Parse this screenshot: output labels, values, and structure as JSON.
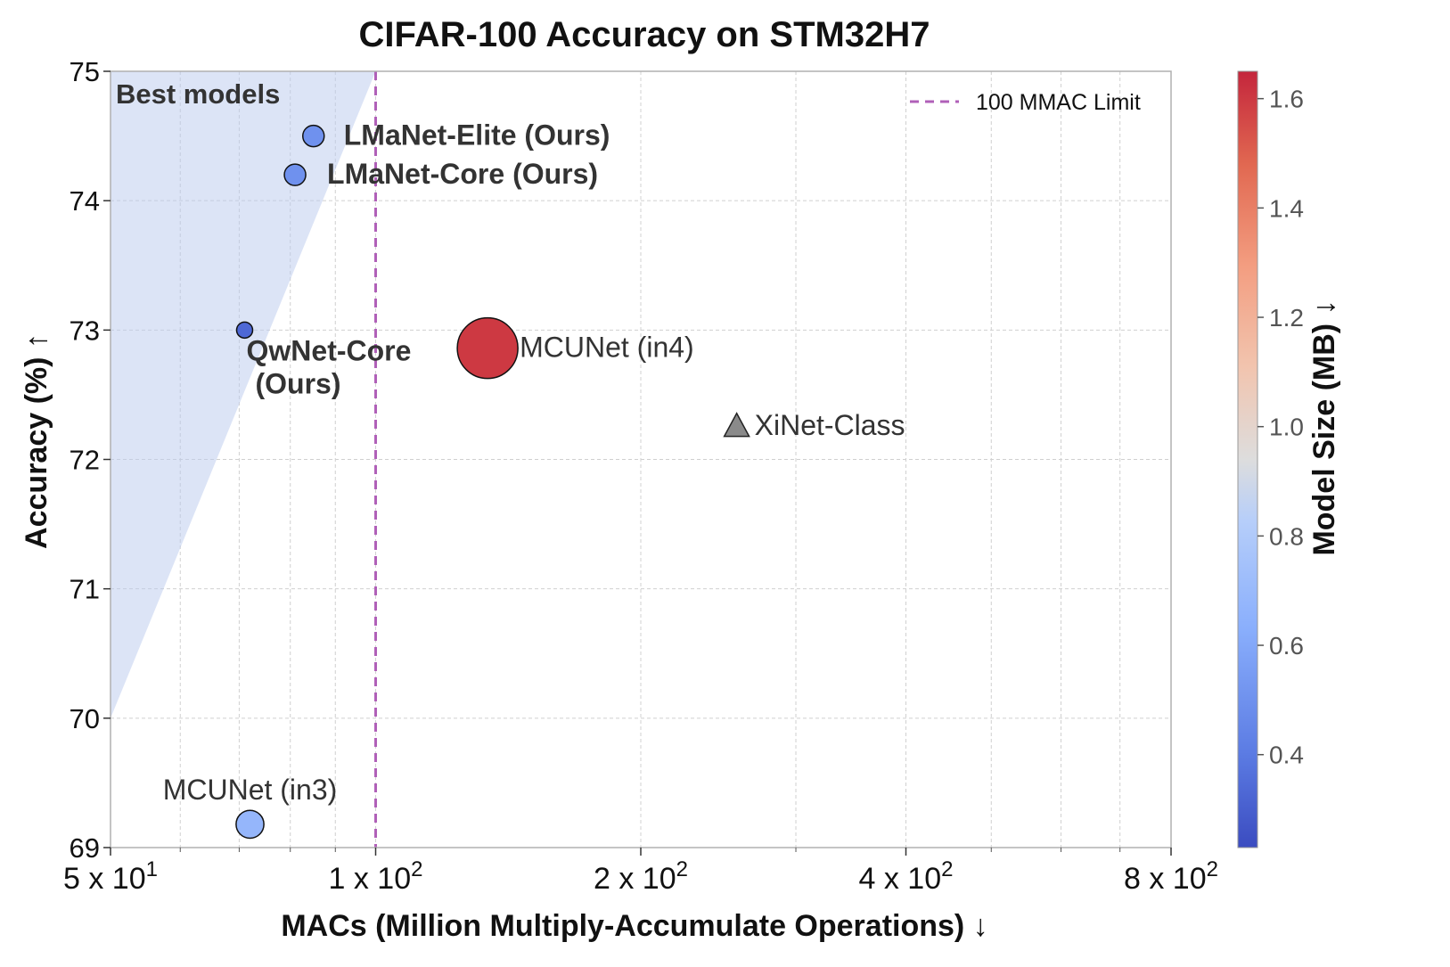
{
  "chart_data": {
    "type": "scatter",
    "title": "CIFAR-100 Accuracy on STM32H7",
    "xlabel": "MACs (Million Multiply-Accumulate Operations) ↓",
    "ylabel": "Accuracy (%) ↑",
    "x_scale": "log",
    "xlim": [
      50,
      800
    ],
    "ylim": [
      69,
      75
    ],
    "x_ticks": [
      {
        "value": 50,
        "mantissa": "5 x 10",
        "exp": "1"
      },
      {
        "value": 100,
        "mantissa": "1 x 10",
        "exp": "2"
      },
      {
        "value": 200,
        "mantissa": "2 x 10",
        "exp": "2"
      },
      {
        "value": 400,
        "mantissa": "4 x 10",
        "exp": "2"
      },
      {
        "value": 800,
        "mantissa": "8 x 10",
        "exp": "2"
      }
    ],
    "y_ticks": [
      "69",
      "70",
      "71",
      "72",
      "73",
      "74",
      "75"
    ],
    "grid": true,
    "colorbar": {
      "label": "Model Size (MB) ↓",
      "range": [
        0.23,
        1.65
      ],
      "ticks": [
        "0.4",
        "0.6",
        "0.8",
        "1.0",
        "1.2",
        "1.4",
        "1.6"
      ],
      "colormap": "coolwarm"
    },
    "reference_line": {
      "x": 100,
      "label": "100 MMAC Limit",
      "color": "#b060b8"
    },
    "region": {
      "label": "Best models",
      "color": "#b9c9ee",
      "boundary": [
        [
          50,
          70.0
        ],
        [
          100,
          75.0
        ]
      ]
    },
    "points": [
      {
        "name": "LMaNet-Elite (Ours)",
        "macs": 85,
        "accuracy": 74.5,
        "size_mb": 0.5,
        "marker": "circle",
        "bold": true
      },
      {
        "name": "LMaNet-Core (Ours)",
        "macs": 81,
        "accuracy": 74.2,
        "size_mb": 0.5,
        "marker": "circle",
        "bold": true
      },
      {
        "name": "QwNet-Core",
        "name_line2": "(Ours)",
        "macs": 71,
        "accuracy": 73.0,
        "size_mb": 0.33,
        "marker": "circle",
        "bold": true
      },
      {
        "name": "MCUNet (in4)",
        "macs": 134,
        "accuracy": 72.86,
        "size_mb": 1.6,
        "marker": "circle",
        "bold": false
      },
      {
        "name": "XiNet-Class",
        "macs": 257,
        "accuracy": 72.26,
        "size_mb": null,
        "marker": "triangle",
        "bold": false
      },
      {
        "name": "MCUNet (in3)",
        "macs": 72,
        "accuracy": 69.18,
        "size_mb": 0.68,
        "marker": "circle",
        "bold": false
      }
    ]
  }
}
